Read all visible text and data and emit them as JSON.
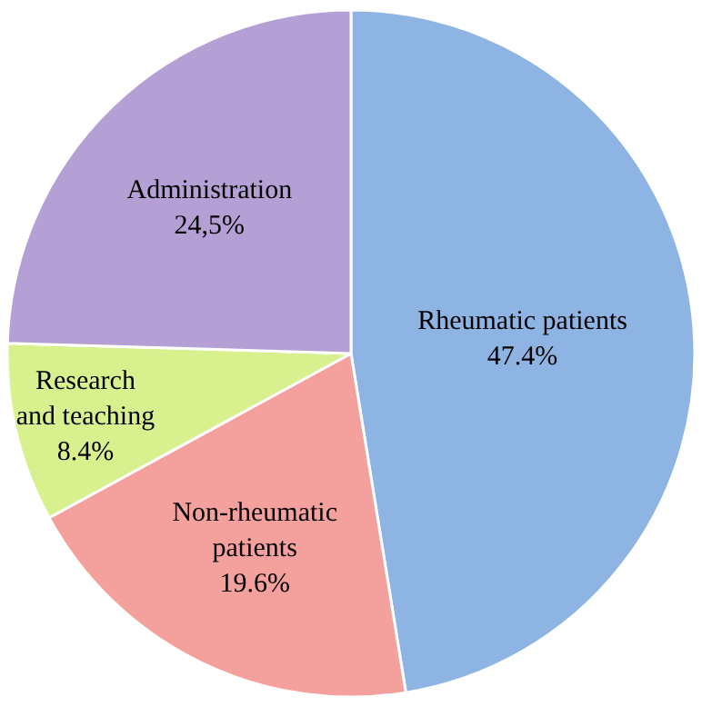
{
  "chart_data": {
    "type": "pie",
    "categories": [
      "Rheumatic patients",
      "Non-rheumatic patients",
      "Research and teaching",
      "Administration"
    ],
    "values": [
      47.4,
      19.6,
      8.4,
      24.5
    ],
    "value_labels": [
      "47.4%",
      "19.6%",
      "8.4%",
      "24,5%"
    ],
    "colors": [
      "#8db4e3",
      "#f4a19d",
      "#d8f08e",
      "#b5a0d6"
    ],
    "legend": false
  }
}
